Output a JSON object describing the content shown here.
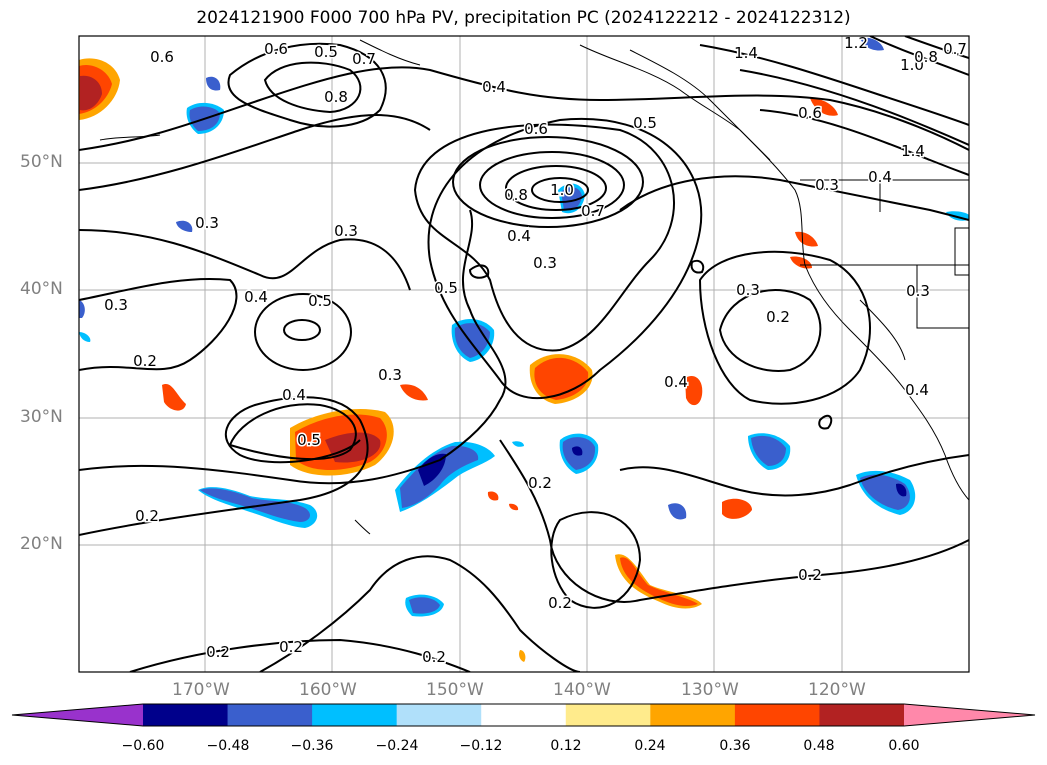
{
  "title": "2024121900 F000 700 hPa PV, precipitation PC (2024122212 - 2024122312)",
  "map": {
    "lat_labels": [
      "50°N",
      "40°N",
      "30°N",
      "20°N"
    ],
    "lon_labels": [
      "170°W",
      "160°W",
      "150°W",
      "140°W",
      "130°W",
      "120°W"
    ],
    "contour_labels": [
      "0.6",
      "0.6",
      "0.5",
      "0.7",
      "0.8",
      "0.4",
      "1.4",
      "1.2",
      "1.0",
      "0.8",
      "0.7",
      "0.6",
      "0.5",
      "0.6",
      "1.4",
      "0.3",
      "0.4",
      "0.8",
      "1.0",
      "0.7",
      "0.4",
      "0.3",
      "0.3",
      "0.3",
      "0.5",
      "0.3",
      "0.4",
      "0.5",
      "0.2",
      "0.3",
      "0.3",
      "0.2",
      "0.4",
      "0.4",
      "0.5",
      "0.2",
      "0.2",
      "0.2",
      "0.2",
      "0.2",
      "0.2",
      "0.2",
      "0.3",
      "0.4"
    ]
  },
  "colorbar": {
    "colors": [
      "#9932cc",
      "#00008b",
      "#3a5fcd",
      "#00bfff",
      "#b0e0fa",
      "#ffffff",
      "#ffeb8c",
      "#ffa500",
      "#ff4500",
      "#b22222",
      "#ff88aa"
    ],
    "ticks": [
      "−0.60",
      "−0.48",
      "−0.36",
      "−0.24",
      "−0.12",
      "0.12",
      "0.24",
      "0.36",
      "0.48",
      "0.60"
    ]
  }
}
